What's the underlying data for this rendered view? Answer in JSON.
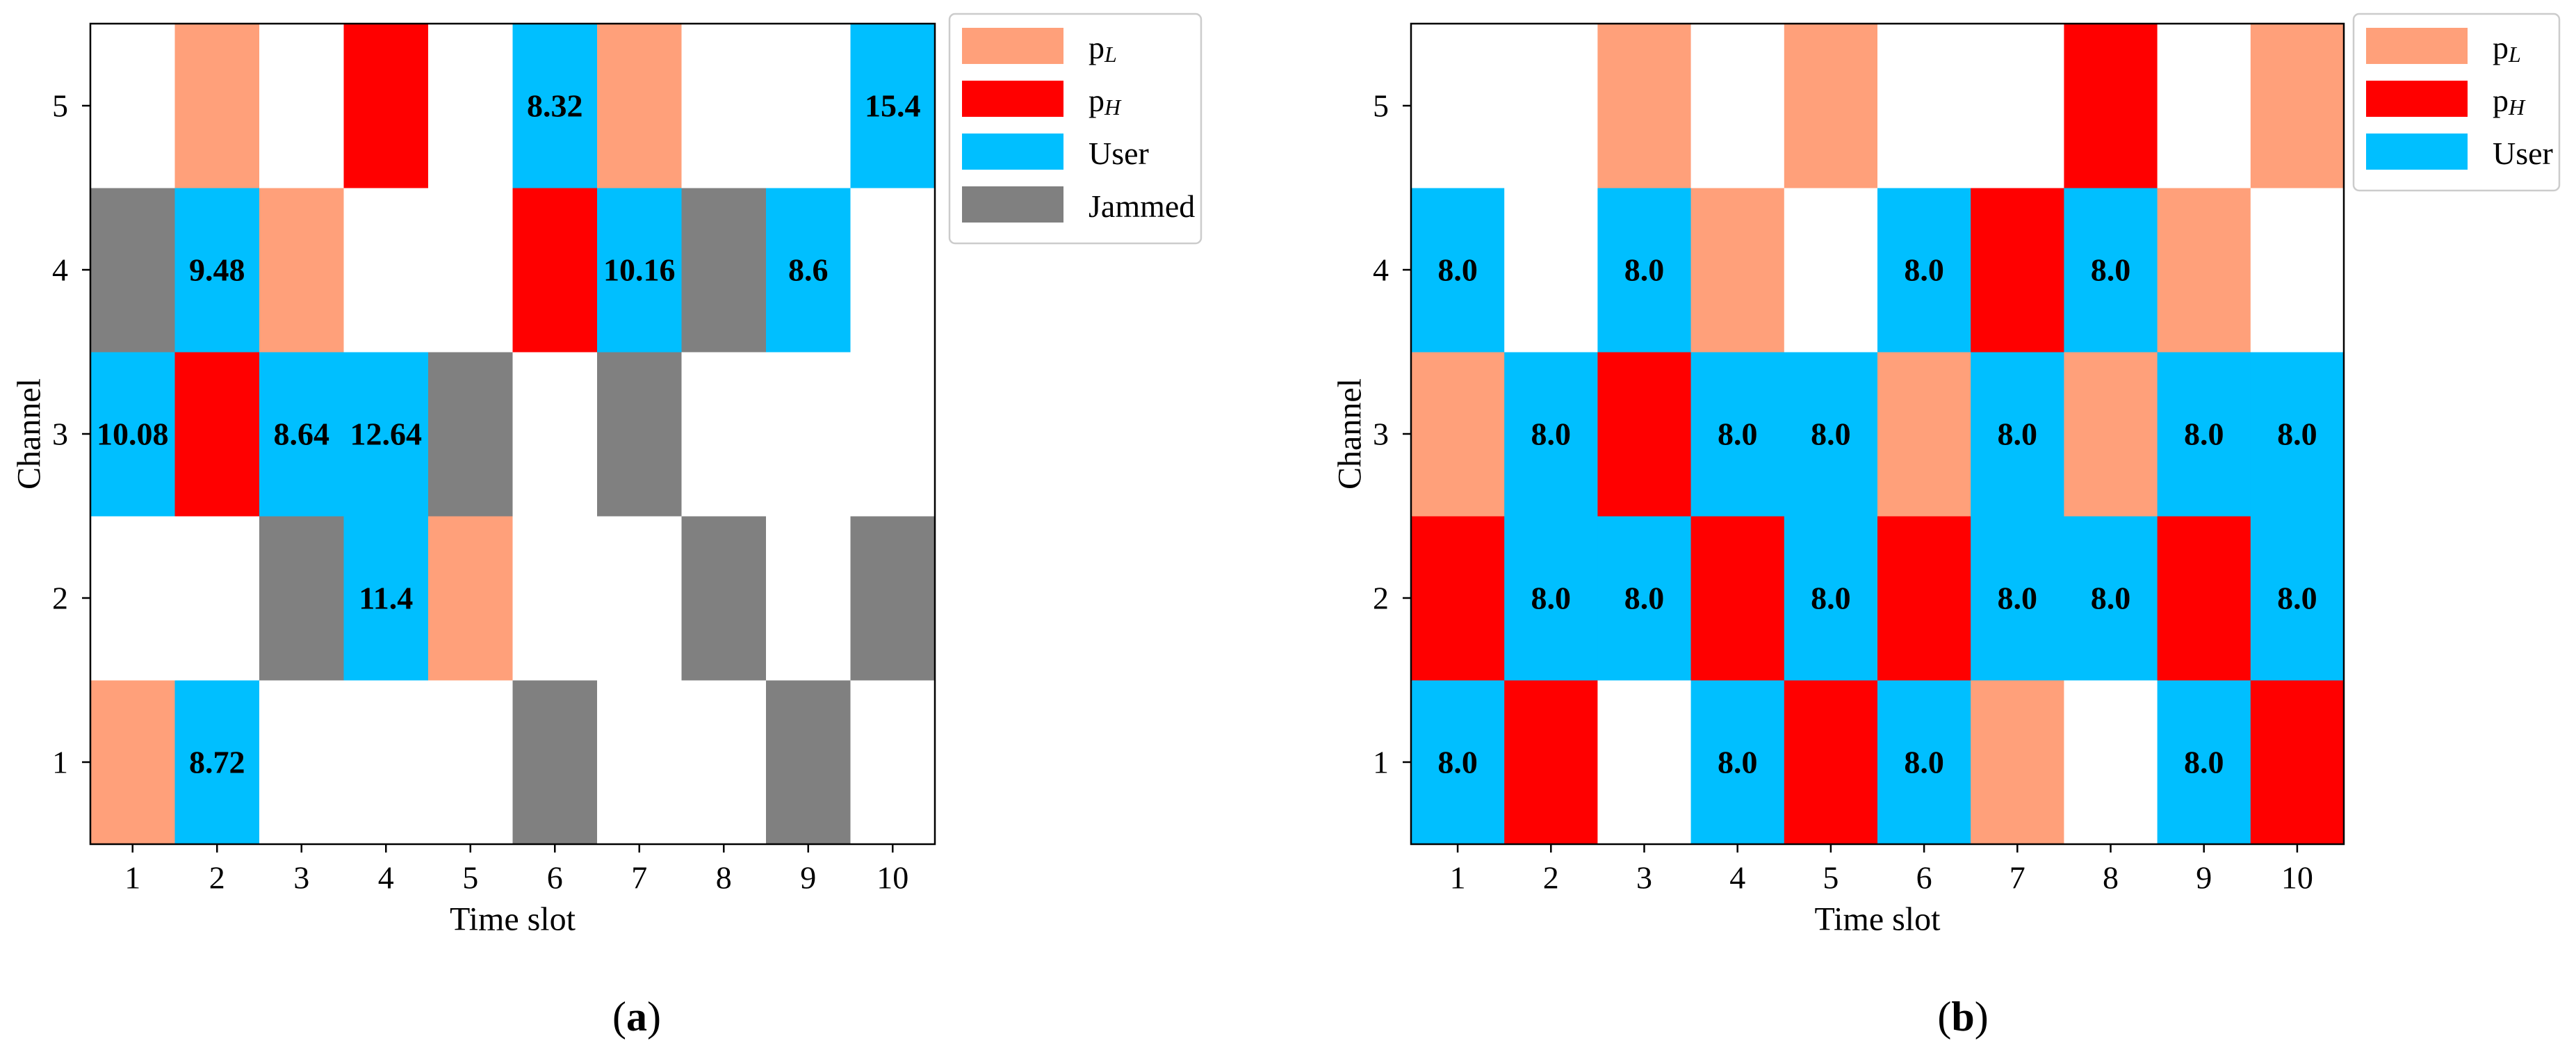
{
  "colors": {
    "empty": "#ffffff",
    "pL": "#FFA07A",
    "pH": "#FF0000",
    "User": "#00BFFF",
    "Jammed": "#808080",
    "axis": "#000000",
    "text": "#000000"
  },
  "chart_data": [
    {
      "type": "heatmap",
      "panel_label": "(a)",
      "panel_letter": "a",
      "xlabel": "Time slot",
      "ylabel": "Channel",
      "x_ticks": [
        "1",
        "2",
        "3",
        "4",
        "5",
        "6",
        "7",
        "8",
        "9",
        "10"
      ],
      "y_ticks": [
        "1",
        "2",
        "3",
        "4",
        "5"
      ],
      "legend": [
        {
          "key": "pL",
          "base": "p",
          "sub": "L"
        },
        {
          "key": "pH",
          "base": "p",
          "sub": "H"
        },
        {
          "key": "User",
          "base": "User",
          "sub": ""
        },
        {
          "key": "Jammed",
          "base": "Jammed",
          "sub": ""
        }
      ],
      "grid": [
        [
          {
            "state": "pL"
          },
          {
            "state": "User",
            "label": "8.72"
          },
          {
            "state": "empty"
          },
          {
            "state": "empty"
          },
          {
            "state": "empty"
          },
          {
            "state": "Jammed"
          },
          {
            "state": "empty"
          },
          {
            "state": "empty"
          },
          {
            "state": "Jammed"
          },
          {
            "state": "empty"
          }
        ],
        [
          {
            "state": "empty"
          },
          {
            "state": "empty"
          },
          {
            "state": "Jammed"
          },
          {
            "state": "User",
            "label": "11.4"
          },
          {
            "state": "pL"
          },
          {
            "state": "empty"
          },
          {
            "state": "empty"
          },
          {
            "state": "Jammed"
          },
          {
            "state": "empty"
          },
          {
            "state": "Jammed"
          }
        ],
        [
          {
            "state": "User",
            "label": "10.08"
          },
          {
            "state": "pH"
          },
          {
            "state": "User",
            "label": "8.64"
          },
          {
            "state": "User",
            "label": "12.64"
          },
          {
            "state": "Jammed"
          },
          {
            "state": "empty"
          },
          {
            "state": "Jammed"
          },
          {
            "state": "empty"
          },
          {
            "state": "empty"
          },
          {
            "state": "empty"
          }
        ],
        [
          {
            "state": "Jammed"
          },
          {
            "state": "User",
            "label": "9.48"
          },
          {
            "state": "pL"
          },
          {
            "state": "empty"
          },
          {
            "state": "empty"
          },
          {
            "state": "pH"
          },
          {
            "state": "User",
            "label": "10.16"
          },
          {
            "state": "Jammed"
          },
          {
            "state": "User",
            "label": "8.6"
          },
          {
            "state": "empty"
          }
        ],
        [
          {
            "state": "empty"
          },
          {
            "state": "pL"
          },
          {
            "state": "empty"
          },
          {
            "state": "pH"
          },
          {
            "state": "empty"
          },
          {
            "state": "User",
            "label": "8.32"
          },
          {
            "state": "pL"
          },
          {
            "state": "empty"
          },
          {
            "state": "empty"
          },
          {
            "state": "User",
            "label": "15.4"
          }
        ]
      ]
    },
    {
      "type": "heatmap",
      "panel_label": "(b)",
      "panel_letter": "b",
      "xlabel": "Time slot",
      "ylabel": "Channel",
      "x_ticks": [
        "1",
        "2",
        "3",
        "4",
        "5",
        "6",
        "7",
        "8",
        "9",
        "10"
      ],
      "y_ticks": [
        "1",
        "2",
        "3",
        "4",
        "5"
      ],
      "legend": [
        {
          "key": "pL",
          "base": "p",
          "sub": "L"
        },
        {
          "key": "pH",
          "base": "p",
          "sub": "H"
        },
        {
          "key": "User",
          "base": "User",
          "sub": ""
        }
      ],
      "grid": [
        [
          {
            "state": "User",
            "label": "8.0"
          },
          {
            "state": "pH"
          },
          {
            "state": "empty"
          },
          {
            "state": "User",
            "label": "8.0"
          },
          {
            "state": "pH"
          },
          {
            "state": "User",
            "label": "8.0"
          },
          {
            "state": "pL"
          },
          {
            "state": "empty"
          },
          {
            "state": "User",
            "label": "8.0"
          },
          {
            "state": "pH"
          }
        ],
        [
          {
            "state": "pH"
          },
          {
            "state": "User",
            "label": "8.0"
          },
          {
            "state": "User",
            "label": "8.0"
          },
          {
            "state": "pH"
          },
          {
            "state": "User",
            "label": "8.0"
          },
          {
            "state": "pH"
          },
          {
            "state": "User",
            "label": "8.0"
          },
          {
            "state": "User",
            "label": "8.0"
          },
          {
            "state": "pH"
          },
          {
            "state": "User",
            "label": "8.0"
          }
        ],
        [
          {
            "state": "pL"
          },
          {
            "state": "User",
            "label": "8.0"
          },
          {
            "state": "pH"
          },
          {
            "state": "User",
            "label": "8.0"
          },
          {
            "state": "User",
            "label": "8.0"
          },
          {
            "state": "pL"
          },
          {
            "state": "User",
            "label": "8.0"
          },
          {
            "state": "pL"
          },
          {
            "state": "User",
            "label": "8.0"
          },
          {
            "state": "User",
            "label": "8.0"
          }
        ],
        [
          {
            "state": "User",
            "label": "8.0"
          },
          {
            "state": "empty"
          },
          {
            "state": "User",
            "label": "8.0"
          },
          {
            "state": "pL"
          },
          {
            "state": "empty"
          },
          {
            "state": "User",
            "label": "8.0"
          },
          {
            "state": "pH"
          },
          {
            "state": "User",
            "label": "8.0"
          },
          {
            "state": "pL"
          },
          {
            "state": "empty"
          }
        ],
        [
          {
            "state": "empty"
          },
          {
            "state": "empty"
          },
          {
            "state": "pL"
          },
          {
            "state": "empty"
          },
          {
            "state": "pL"
          },
          {
            "state": "empty"
          },
          {
            "state": "empty"
          },
          {
            "state": "pH"
          },
          {
            "state": "empty"
          },
          {
            "state": "pL"
          }
        ]
      ]
    }
  ]
}
